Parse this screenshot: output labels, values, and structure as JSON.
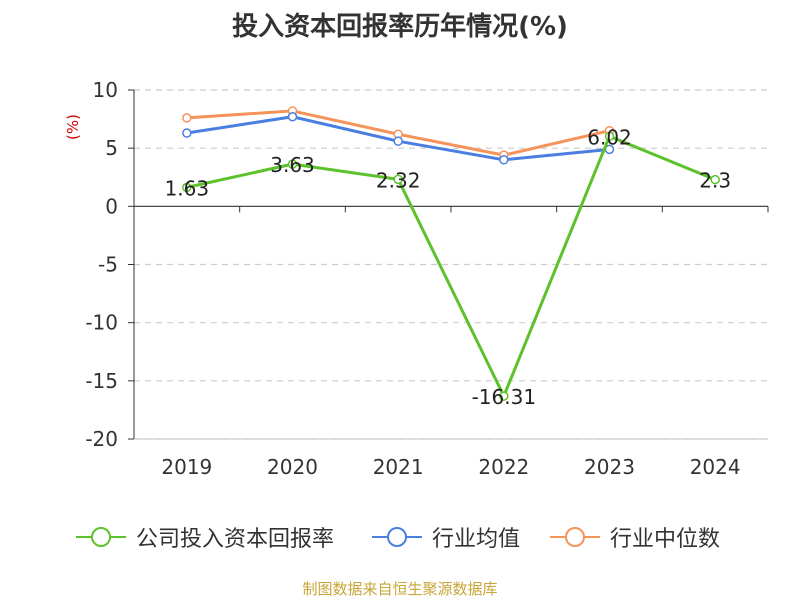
{
  "title": "投入资本回报率历年情况(%)",
  "source": "制图数据来自恒生聚源数据库",
  "chart_data": {
    "type": "line",
    "title": "投入资本回报率历年情况(%)",
    "ylabel": "(%)",
    "ylabel_color": "#d40000",
    "categories": [
      "2019",
      "2020",
      "2021",
      "2022",
      "2023",
      "2024"
    ],
    "ylim": [
      -20,
      10
    ],
    "yticks": [
      10,
      5,
      0,
      -5,
      -10,
      -15,
      -20
    ],
    "grid": "horizontal-dashed",
    "legend_position": "bottom",
    "series": [
      {
        "name": "公司投入资本回报率",
        "color": "#5cc22b",
        "values": [
          1.63,
          3.63,
          2.32,
          -16.31,
          6.02,
          2.3
        ],
        "labels": [
          "1.63",
          "3.63",
          "2.32",
          "-16.31",
          "6.02",
          "2.3"
        ]
      },
      {
        "name": "行业均值",
        "color": "#4a7ee0",
        "values": [
          6.3,
          7.7,
          5.6,
          4.0,
          4.9,
          null
        ]
      },
      {
        "name": "行业中位数",
        "color": "#f5935a",
        "values": [
          7.6,
          8.2,
          6.2,
          4.4,
          6.5,
          null
        ]
      }
    ]
  }
}
